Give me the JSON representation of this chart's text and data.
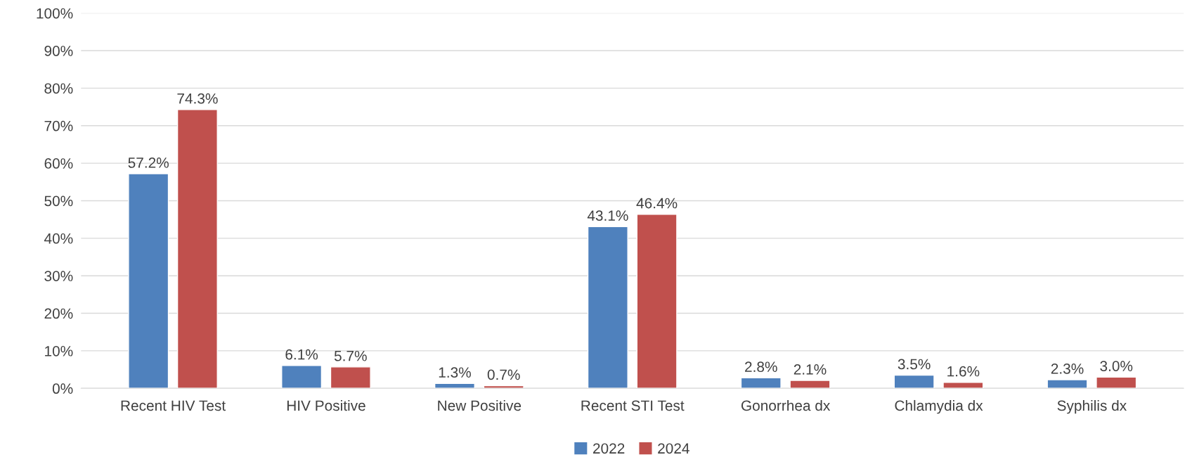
{
  "chart_data": {
    "type": "bar",
    "categories": [
      "Recent HIV Test",
      "HIV Positive",
      "New Positive",
      "Recent STI Test",
      "Gonorrhea dx",
      "Chlamydia dx",
      "Syphilis dx"
    ],
    "series": [
      {
        "name": "2022",
        "color": "#4f81bd",
        "values": [
          57.2,
          6.1,
          1.3,
          43.1,
          2.8,
          3.5,
          2.3
        ],
        "value_labels": [
          "57.2%",
          "6.1%",
          "1.3%",
          "43.1%",
          "2.8%",
          "3.5%",
          "2.3%"
        ]
      },
      {
        "name": "2024",
        "color": "#c0504d",
        "values": [
          74.3,
          5.7,
          0.7,
          46.4,
          2.1,
          1.6,
          3.0
        ],
        "value_labels": [
          "74.3%",
          "5.7%",
          "0.7%",
          "46.4%",
          "2.1%",
          "1.6%",
          "3.0%"
        ]
      }
    ],
    "ylim": [
      0,
      100
    ],
    "yticks": [
      {
        "value": 0,
        "label": "0%"
      },
      {
        "value": 10,
        "label": "10%"
      },
      {
        "value": 20,
        "label": "20%"
      },
      {
        "value": 30,
        "label": "30%"
      },
      {
        "value": 40,
        "label": "40%"
      },
      {
        "value": 50,
        "label": "50%"
      },
      {
        "value": 60,
        "label": "60%"
      },
      {
        "value": 70,
        "label": "70%"
      },
      {
        "value": 80,
        "label": "80%"
      },
      {
        "value": 90,
        "label": "90%"
      },
      {
        "value": 100,
        "label": "100%"
      }
    ],
    "grid": "y",
    "legend": "bottom"
  }
}
